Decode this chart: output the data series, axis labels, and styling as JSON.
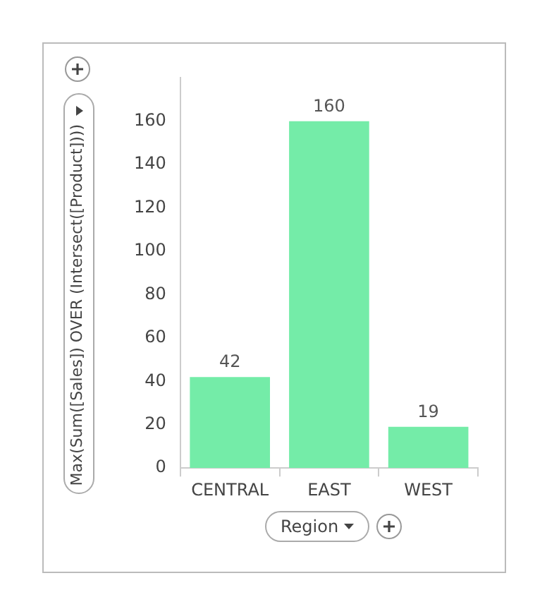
{
  "chart_data": {
    "type": "bar",
    "xlabel": "Region",
    "ylabel": "Max(Sum([Sales]) OVER (Intersect([Product])))",
    "categories": [
      "CENTRAL",
      "EAST",
      "WEST"
    ],
    "values": [
      42,
      160,
      19
    ],
    "color": "#74eca8",
    "ylim": [
      0,
      180
    ],
    "yticks": [
      0,
      20,
      40,
      60,
      80,
      100,
      120,
      140,
      160
    ],
    "data_labels": true,
    "grid": false,
    "legend": false
  }
}
